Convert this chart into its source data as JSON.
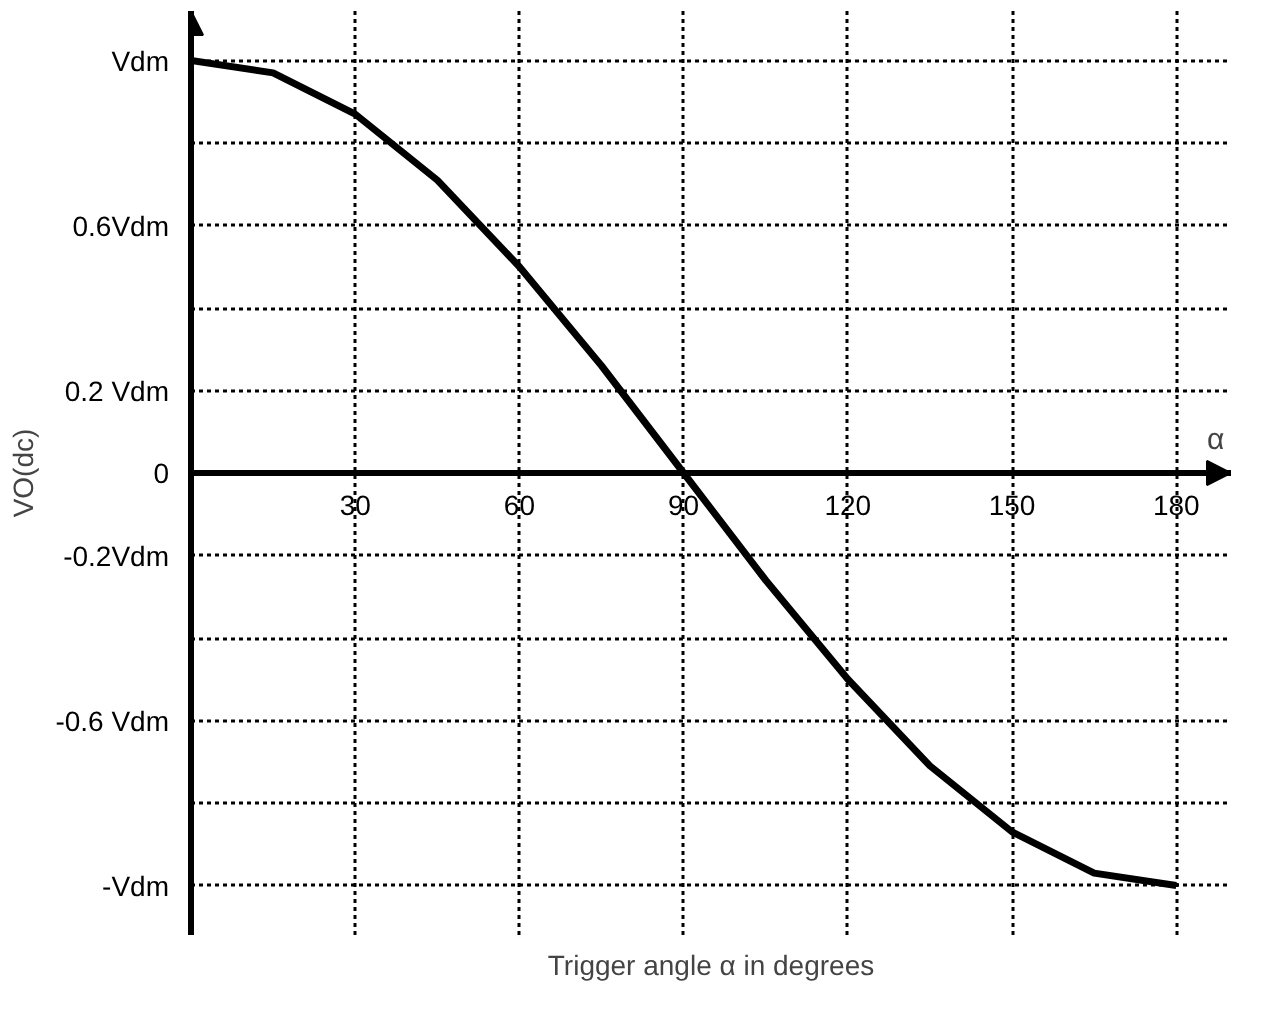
{
  "chart_data": {
    "type": "line",
    "ylabel": "VO(dc)",
    "xlabel": "Trigger angle α in degrees",
    "annotations": [
      "α"
    ],
    "x": [
      0,
      15,
      30,
      45,
      60,
      75,
      90,
      105,
      120,
      135,
      150,
      165,
      180
    ],
    "series": [
      {
        "color": "#000000",
        "values": [
          1,
          0.97,
          0.87,
          0.71,
          0.5,
          0.26,
          0,
          -0.26,
          -0.5,
          -0.71,
          -0.87,
          -0.97,
          -1
        ]
      }
    ],
    "xlim": [
      0,
      190
    ],
    "ylim": [
      -1.12,
      1.12
    ],
    "xticks": [
      30,
      60,
      90,
      120,
      150,
      180
    ],
    "yticks": [
      {
        "value": 1,
        "label": "Vdm"
      },
      {
        "value": 0.8,
        "label": null
      },
      {
        "value": 0.6,
        "label": "0.6Vdm"
      },
      {
        "value": 0.4,
        "label": null
      },
      {
        "value": 0.2,
        "label": "0.2 Vdm"
      },
      {
        "value": 0,
        "label": "0"
      },
      {
        "value": -0.2,
        "label": "-0.2Vdm"
      },
      {
        "value": -0.4,
        "label": null
      },
      {
        "value": -0.6,
        "label": "-0.6 Vdm"
      },
      {
        "value": -0.8,
        "label": null
      },
      {
        "value": -1,
        "label": "-Vdm"
      }
    ],
    "grid": true,
    "marker": "none",
    "line_style": "solid"
  }
}
